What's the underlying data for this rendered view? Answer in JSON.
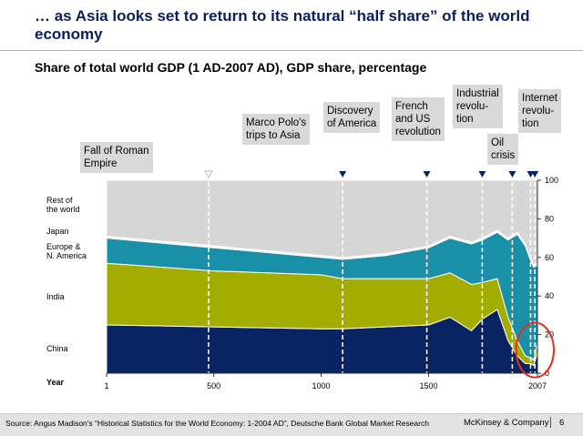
{
  "slide": {
    "title": "… as Asia looks set to return to its natural “half share” of the world economy",
    "chart_title": "Share of total world GDP (1 AD-2007 AD), GDP share, percentage",
    "year_label": "Year"
  },
  "callouts": [
    {
      "id": "rome",
      "text": "Fall of Roman\nEmpire"
    },
    {
      "id": "polo",
      "text": "Marco Polo's\ntrips to Asia"
    },
    {
      "id": "america",
      "text": "Discovery\nof America"
    },
    {
      "id": "french",
      "text": "French\nand US\nrevolution"
    },
    {
      "id": "industrial",
      "text": "Industrial\nrevolu-\ntion"
    },
    {
      "id": "oil",
      "text": "Oil\ncrisis"
    },
    {
      "id": "internet",
      "text": "Internet\nrevolu-\ntion"
    }
  ],
  "series_labels": {
    "rest": "Rest of\nthe world",
    "japan": "Japan",
    "europe": "Europe &\nN. America",
    "india": "India",
    "china": "China"
  },
  "chart_data": {
    "type": "area",
    "stacked": true,
    "title": "Share of total world GDP (1 AD-2007 AD), GDP share, percentage",
    "x_axis": {
      "label": "Year",
      "ticks": [
        1,
        500,
        1000,
        1500,
        2007
      ],
      "tick_labels": [
        "1",
        "500",
        "1000",
        "1500",
        "2007"
      ]
    },
    "y_axis": {
      "range": [
        0,
        100
      ],
      "ticks": [
        0,
        20,
        40,
        60,
        80,
        100
      ],
      "position": "right"
    },
    "x": [
      1,
      500,
      1000,
      1100,
      1300,
      1500,
      1600,
      1700,
      1750,
      1820,
      1870,
      1913,
      1950,
      1973,
      1990,
      2007
    ],
    "series": [
      {
        "name": "China",
        "color": "#0a2463",
        "values": [
          25,
          24,
          23,
          23,
          24,
          25,
          29,
          22,
          28,
          33,
          17,
          9,
          5,
          5,
          4,
          11
        ]
      },
      {
        "name": "India",
        "color": "#a3ad00",
        "values": [
          32,
          29,
          28,
          26,
          25,
          24,
          23,
          24,
          19,
          16,
          12,
          8,
          4,
          3,
          3,
          5
        ]
      },
      {
        "name": "Europe & N. America",
        "color": "#1a8fa8",
        "values": [
          13,
          12,
          9,
          10,
          12,
          16,
          18,
          21,
          22,
          24,
          40,
          55,
          57,
          51,
          48,
          40
        ]
      },
      {
        "name": "Japan",
        "color": "#f2f2f2",
        "values": [
          1,
          1,
          1,
          1,
          1,
          1,
          1,
          1,
          1,
          1,
          1,
          1,
          1,
          1,
          1,
          1
        ]
      },
      {
        "name": "Rest of the world",
        "color": "#d6d6d6",
        "values": [
          29,
          34,
          39,
          40,
          38,
          34,
          29,
          32,
          30,
          26,
          30,
          27,
          33,
          40,
          44,
          43
        ]
      }
    ],
    "events": [
      {
        "label": "Fall of Roman Empire",
        "year": 476
      },
      {
        "label": "Marco Polo's trips to Asia",
        "year": 1100
      },
      {
        "label": "Discovery of America",
        "year": 1492
      },
      {
        "label": "French and US revolution",
        "year": 1750
      },
      {
        "label": "Industrial revolution",
        "year": 1890
      },
      {
        "label": "Oil crisis",
        "year": 1975
      },
      {
        "label": "Internet revolution",
        "year": 1995
      }
    ],
    "highlight": {
      "x_range": [
        1950,
        2007
      ],
      "color": "#e03020"
    }
  },
  "footer": {
    "source": "Source: Angus Madison's “Historical Statistics for the World Economy: 1-2004 AD”, Deutsche Bank Global Market Research",
    "brand": "McKinsey & Company",
    "page": "6"
  }
}
